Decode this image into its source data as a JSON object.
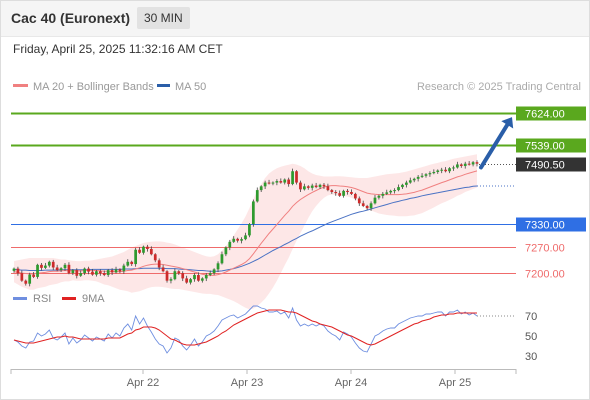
{
  "header": {
    "title": "Cac 40 (Euronext)",
    "timeframe": "30 MIN",
    "datetime": "Friday, April 25, 2025 11:32:16 AM CET"
  },
  "legend": {
    "ma20": "MA 20 + Bollinger Bands",
    "ma50": "MA 50",
    "source": "Research © 2025 Trading Central",
    "rsi": "RSI",
    "rsi_ma": "9MA"
  },
  "colors": {
    "up_candle": "#2e9a2e",
    "down_candle": "#cc2b2b",
    "ma20": "#f08080",
    "ma50": "#4a72c4",
    "bollinger_fill": "#fde3e3",
    "resistance": "#5aa81e",
    "pivot": "#2f6fe4",
    "support": "#ef6b6b",
    "last_price": "#333333",
    "arrow": "#2a5ea8",
    "rsi_line": "#6f8fe0",
    "rsi_ma_line": "#e02222"
  },
  "chart_data": [
    {
      "type": "candlestick",
      "title": "Cac 40 (Euronext)",
      "timeframe": "30 MIN",
      "x_tick_labels": [
        "Apr 22",
        "Apr 23",
        "Apr 24",
        "Apr 25"
      ],
      "ylim": [
        7150,
        7680
      ],
      "levels": [
        {
          "value": 7624.0,
          "label": "7624.00",
          "kind": "resistance"
        },
        {
          "value": 7539.0,
          "label": "7539.00",
          "kind": "resistance"
        },
        {
          "value": 7330.0,
          "label": "7330.00",
          "kind": "pivot"
        },
        {
          "value": 7270.0,
          "label": "7270.00",
          "kind": "support"
        },
        {
          "value": 7200.0,
          "label": "7200.00",
          "kind": "support"
        }
      ],
      "last_price": {
        "value": 7490.5,
        "label": "7490.50"
      },
      "target_arrow": {
        "from": 7480,
        "to": 7624
      },
      "close": [
        7212,
        7200,
        7180,
        7172,
        7196,
        7190,
        7222,
        7214,
        7220,
        7230,
        7215,
        7208,
        7213,
        7222,
        7200,
        7208,
        7193,
        7200,
        7212,
        7204,
        7196,
        7205,
        7200,
        7195,
        7208,
        7202,
        7210,
        7205,
        7220,
        7230,
        7224,
        7262,
        7254,
        7270,
        7264,
        7250,
        7234,
        7215,
        7205,
        7180,
        7184,
        7205,
        7200,
        7186,
        7175,
        7184,
        7195,
        7180,
        7186,
        7195,
        7200,
        7210,
        7226,
        7250,
        7268,
        7283,
        7291,
        7286,
        7290,
        7300,
        7330,
        7390,
        7420,
        7430,
        7440,
        7438,
        7440,
        7444,
        7440,
        7448,
        7436,
        7470,
        7440,
        7422,
        7430,
        7426,
        7432,
        7428,
        7434,
        7430,
        7420,
        7415,
        7412,
        7405,
        7418,
        7415,
        7410,
        7398,
        7385,
        7378,
        7372,
        7385,
        7400,
        7405,
        7410,
        7414,
        7418,
        7420,
        7428,
        7434,
        7440,
        7446,
        7450,
        7455,
        7458,
        7462,
        7465,
        7468,
        7472,
        7474,
        7470,
        7478,
        7480,
        7488,
        7484,
        7490,
        7488,
        7494,
        7490
      ],
      "ma20": [
        7204,
        7202,
        7200,
        7199,
        7198,
        7198,
        7200,
        7201,
        7202,
        7204,
        7205,
        7205,
        7206,
        7207,
        7206,
        7207,
        7206,
        7206,
        7207,
        7207,
        7207,
        7207,
        7206,
        7205,
        7205,
        7204,
        7204,
        7204,
        7205,
        7207,
        7208,
        7211,
        7214,
        7218,
        7221,
        7223,
        7224,
        7224,
        7223,
        7221,
        7219,
        7217,
        7215,
        7212,
        7209,
        7206,
        7203,
        7200,
        7197,
        7195,
        7194,
        7194,
        7196,
        7199,
        7203,
        7208,
        7213,
        7218,
        7223,
        7229,
        7238,
        7251,
        7265,
        7279,
        7292,
        7305,
        7317,
        7329,
        7341,
        7353,
        7364,
        7377,
        7387,
        7395,
        7402,
        7408,
        7414,
        7419,
        7424,
        7428,
        7431,
        7432,
        7432,
        7431,
        7430,
        7429,
        7427,
        7424,
        7420,
        7416,
        7412,
        7410,
        7409,
        7408,
        7408,
        7408,
        7408,
        7408,
        7408,
        7409,
        7410,
        7412,
        7414,
        7417,
        7420,
        7424,
        7428,
        7432,
        7436,
        7440,
        7443,
        7447,
        7451,
        7455,
        7458,
        7462,
        7465,
        7468,
        7471
      ],
      "bb_upper": [
        7232,
        7234,
        7236,
        7238,
        7240,
        7240,
        7240,
        7240,
        7240,
        7240,
        7240,
        7238,
        7236,
        7236,
        7234,
        7233,
        7232,
        7232,
        7233,
        7233,
        7234,
        7236,
        7238,
        7240,
        7242,
        7244,
        7248,
        7252,
        7256,
        7262,
        7268,
        7272,
        7276,
        7280,
        7282,
        7283,
        7284,
        7284,
        7283,
        7281,
        7279,
        7276,
        7272,
        7268,
        7264,
        7260,
        7256,
        7252,
        7248,
        7245,
        7243,
        7245,
        7250,
        7260,
        7272,
        7286,
        7300,
        7316,
        7332,
        7350,
        7372,
        7396,
        7418,
        7436,
        7452,
        7464,
        7472,
        7478,
        7482,
        7485,
        7487,
        7490,
        7488,
        7484,
        7478,
        7470,
        7464,
        7460,
        7458,
        7456,
        7456,
        7456,
        7457,
        7457,
        7456,
        7455,
        7454,
        7453,
        7452,
        7452,
        7452,
        7454,
        7456,
        7458,
        7460,
        7462,
        7463,
        7464,
        7465,
        7467,
        7469,
        7472,
        7475,
        7478,
        7481,
        7484,
        7487,
        7490,
        7492,
        7495,
        7497,
        7500,
        7503,
        7505,
        7507,
        7509,
        7511,
        7513,
        7515
      ],
      "bb_lower": [
        7176,
        7170,
        7164,
        7160,
        7156,
        7156,
        7160,
        7162,
        7164,
        7168,
        7170,
        7172,
        7176,
        7178,
        7178,
        7181,
        7180,
        7180,
        7181,
        7181,
        7180,
        7178,
        7174,
        7170,
        7168,
        7164,
        7160,
        7156,
        7154,
        7152,
        7148,
        7150,
        7152,
        7156,
        7160,
        7163,
        7164,
        7164,
        7163,
        7161,
        7159,
        7158,
        7158,
        7156,
        7154,
        7152,
        7150,
        7148,
        7146,
        7145,
        7145,
        7143,
        7142,
        7138,
        7134,
        7130,
        7126,
        7120,
        7114,
        7108,
        7104,
        7106,
        7112,
        7122,
        7132,
        7146,
        7162,
        7180,
        7200,
        7221,
        7241,
        7264,
        7286,
        7306,
        7326,
        7346,
        7364,
        7378,
        7390,
        7400,
        7406,
        7408,
        7407,
        7405,
        7404,
        7403,
        7400,
        7395,
        7388,
        7380,
        7372,
        7366,
        7362,
        7358,
        7356,
        7354,
        7353,
        7352,
        7351,
        7351,
        7351,
        7352,
        7353,
        7356,
        7359,
        7364,
        7369,
        7374,
        7380,
        7385,
        7389,
        7394,
        7399,
        7405,
        7409,
        7415,
        7419,
        7423,
        7427
      ],
      "ma50": [
        7210,
        7209,
        7208,
        7208,
        7207,
        7207,
        7207,
        7207,
        7208,
        7208,
        7208,
        7208,
        7209,
        7209,
        7209,
        7209,
        7209,
        7209,
        7209,
        7209,
        7210,
        7210,
        7210,
        7210,
        7210,
        7210,
        7210,
        7210,
        7211,
        7211,
        7211,
        7212,
        7212,
        7213,
        7213,
        7213,
        7213,
        7213,
        7213,
        7212,
        7212,
        7212,
        7211,
        7210,
        7210,
        7209,
        7208,
        7207,
        7207,
        7206,
        7205,
        7205,
        7205,
        7206,
        7208,
        7210,
        7212,
        7215,
        7218,
        7222,
        7226,
        7231,
        7236,
        7242,
        7248,
        7254,
        7260,
        7265,
        7270,
        7276,
        7281,
        7287,
        7292,
        7298,
        7303,
        7308,
        7312,
        7317,
        7322,
        7327,
        7332,
        7336,
        7340,
        7344,
        7348,
        7352,
        7356,
        7359,
        7362,
        7364,
        7367,
        7370,
        7373,
        7376,
        7379,
        7382,
        7385,
        7388,
        7390,
        7393,
        7395,
        7398,
        7400,
        7402,
        7405,
        7407,
        7409,
        7411,
        7413,
        7415,
        7417,
        7419,
        7421,
        7423,
        7425,
        7427,
        7428,
        7430,
        7431
      ]
    },
    {
      "type": "line",
      "title": "RSI",
      "y_tick_labels": [
        "70",
        "50",
        "30"
      ],
      "ylim": [
        20,
        80
      ],
      "series": [
        {
          "name": "RSI",
          "values": [
            46,
            44,
            40,
            38,
            44,
            45,
            53,
            50,
            52,
            56,
            48,
            46,
            49,
            53,
            42,
            48,
            43,
            46,
            51,
            48,
            45,
            49,
            47,
            45,
            52,
            48,
            53,
            50,
            58,
            62,
            56,
            70,
            62,
            68,
            60,
            54,
            47,
            42,
            40,
            33,
            38,
            48,
            46,
            40,
            36,
            41,
            47,
            40,
            44,
            50,
            52,
            55,
            60,
            66,
            68,
            70,
            71,
            68,
            70,
            72,
            76,
            80,
            80,
            78,
            77,
            74,
            74,
            75,
            72,
            74,
            68,
            78,
            66,
            60,
            62,
            60,
            62,
            60,
            62,
            60,
            55,
            52,
            50,
            46,
            54,
            52,
            49,
            43,
            38,
            35,
            34,
            42,
            50,
            52,
            55,
            57,
            58,
            58,
            62,
            64,
            66,
            68,
            69,
            70,
            70,
            72,
            72,
            73,
            74,
            74,
            70,
            74,
            74,
            76,
            72,
            74,
            71,
            73,
            70
          ]
        },
        {
          "name": "9MA",
          "values": [
            46,
            45,
            44,
            43,
            43,
            43,
            44,
            45,
            46,
            47,
            48,
            49,
            49,
            50,
            49,
            49,
            48,
            47,
            47,
            47,
            47,
            47,
            47,
            47,
            48,
            48,
            48,
            48,
            50,
            52,
            53,
            56,
            57,
            59,
            59,
            59,
            58,
            56,
            53,
            50,
            47,
            46,
            44,
            42,
            41,
            41,
            41,
            42,
            43,
            44,
            46,
            48,
            50,
            53,
            55,
            58,
            61,
            63,
            65,
            67,
            69,
            71,
            73,
            74,
            75,
            76,
            76,
            76,
            76,
            75,
            74,
            74,
            73,
            71,
            69,
            67,
            65,
            64,
            62,
            61,
            60,
            59,
            57,
            55,
            53,
            51,
            50,
            48,
            46,
            44,
            42,
            41,
            42,
            44,
            46,
            48,
            50,
            52,
            54,
            56,
            58,
            60,
            62,
            63,
            65,
            66,
            67,
            69,
            70,
            71,
            71,
            72,
            72,
            73,
            73,
            73,
            73,
            73,
            73
          ]
        }
      ]
    }
  ]
}
